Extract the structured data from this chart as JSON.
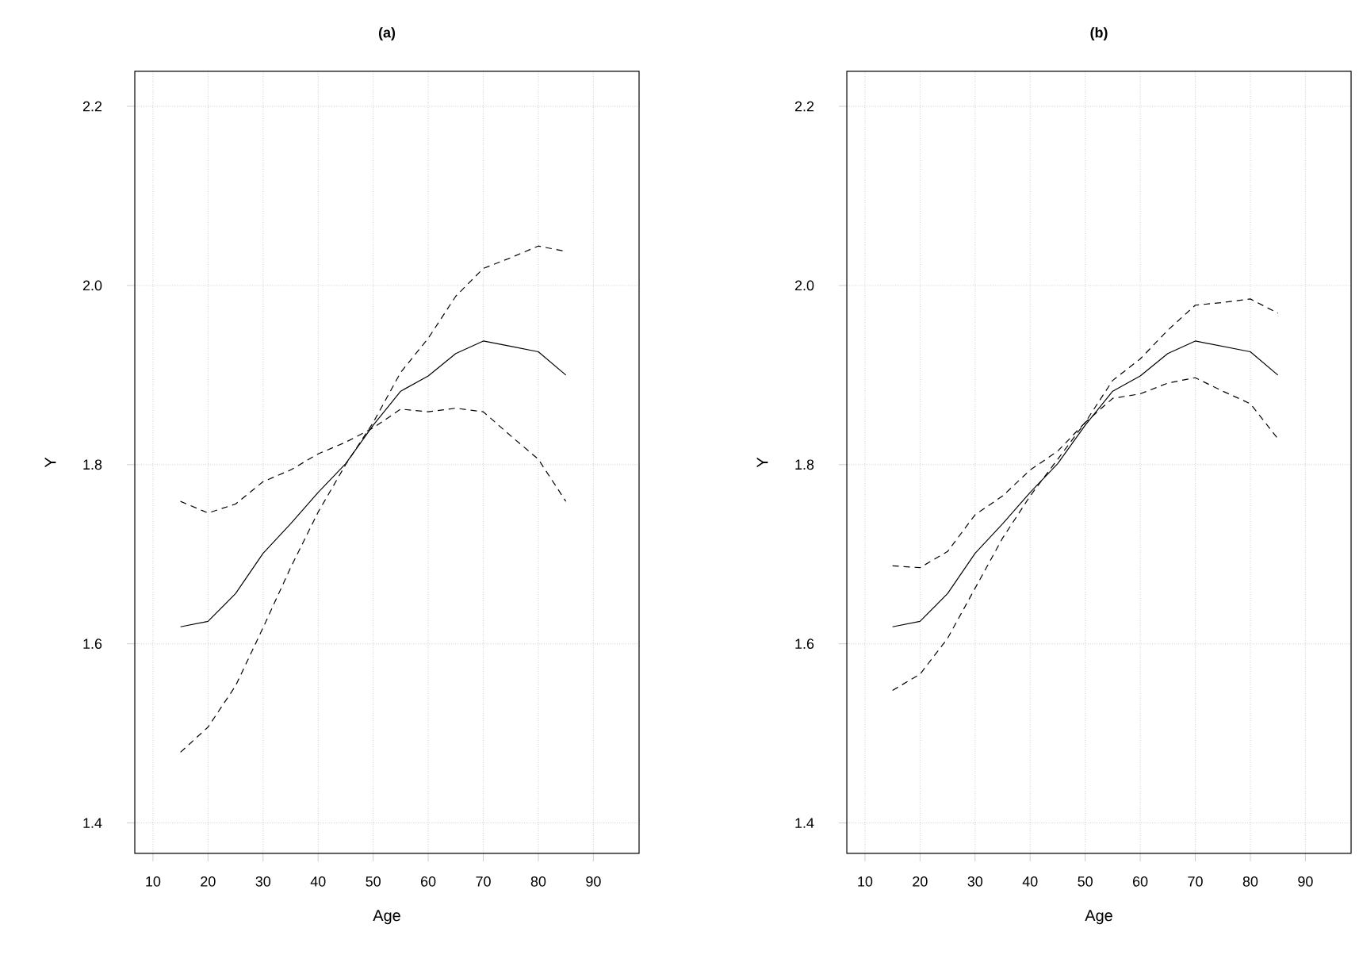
{
  "chart_data": [
    {
      "type": "line",
      "title": "(a)",
      "xlabel": "Age",
      "ylabel": "Y",
      "x": [
        15,
        20,
        25,
        30,
        35,
        40,
        45,
        50,
        55,
        60,
        65,
        70,
        75,
        80,
        85
      ],
      "series": [
        {
          "color": "#000000",
          "line_style": "solid",
          "values": [
            1.619,
            1.625,
            1.656,
            1.701,
            1.734,
            1.769,
            1.801,
            1.844,
            1.882,
            1.899,
            1.924,
            1.938,
            1.932,
            1.926,
            1.9
          ]
        },
        {
          "color": "#000000",
          "line_style": "dashed",
          "values": [
            1.479,
            1.507,
            1.553,
            1.618,
            1.685,
            1.747,
            1.8,
            1.847,
            1.903,
            1.941,
            1.988,
            2.019,
            2.031,
            2.044,
            2.038
          ]
        },
        {
          "color": "#000000",
          "line_style": "dashed",
          "values": [
            1.759,
            1.746,
            1.756,
            1.781,
            1.794,
            1.812,
            1.825,
            1.841,
            1.862,
            1.859,
            1.863,
            1.859,
            1.832,
            1.806,
            1.759
          ]
        }
      ],
      "xlim": [
        6.7,
        98.3
      ],
      "ylim": [
        1.366,
        2.239
      ],
      "xticks": [
        10,
        20,
        30,
        40,
        50,
        60,
        70,
        80,
        90
      ],
      "yticks": [
        {
          "value": 1.4,
          "label": "1.4"
        },
        {
          "value": 1.6,
          "label": "1.6"
        },
        {
          "value": 1.8,
          "label": "1.8"
        },
        {
          "value": 2.0,
          "label": "2.0"
        },
        {
          "value": 2.2,
          "label": "2.2"
        }
      ],
      "grid": true
    },
    {
      "type": "line",
      "title": "(b)",
      "xlabel": "Age",
      "ylabel": "Y",
      "x": [
        15,
        20,
        25,
        30,
        35,
        40,
        45,
        50,
        55,
        60,
        65,
        70,
        75,
        80,
        85
      ],
      "series": [
        {
          "color": "#000000",
          "line_style": "solid",
          "values": [
            1.619,
            1.625,
            1.656,
            1.701,
            1.734,
            1.769,
            1.801,
            1.844,
            1.882,
            1.899,
            1.924,
            1.938,
            1.932,
            1.926,
            1.9
          ]
        },
        {
          "color": "#000000",
          "line_style": "dashed",
          "values": [
            1.687,
            1.685,
            1.703,
            1.744,
            1.765,
            1.794,
            1.815,
            1.847,
            1.894,
            1.918,
            1.95,
            1.978,
            1.981,
            1.985,
            1.969
          ]
        },
        {
          "color": "#000000",
          "line_style": "dashed",
          "values": [
            1.548,
            1.566,
            1.606,
            1.662,
            1.718,
            1.765,
            1.806,
            1.847,
            1.874,
            1.879,
            1.891,
            1.897,
            1.882,
            1.868,
            1.829
          ]
        }
      ],
      "xlim": [
        6.7,
        98.3
      ],
      "ylim": [
        1.366,
        2.239
      ],
      "xticks": [
        10,
        20,
        30,
        40,
        50,
        60,
        70,
        80,
        90
      ],
      "yticks": [
        {
          "value": 1.4,
          "label": "1.4"
        },
        {
          "value": 1.6,
          "label": "1.6"
        },
        {
          "value": 1.8,
          "label": "1.8"
        },
        {
          "value": 2.0,
          "label": "2.0"
        },
        {
          "value": 2.2,
          "label": "2.2"
        }
      ],
      "grid": true
    }
  ]
}
